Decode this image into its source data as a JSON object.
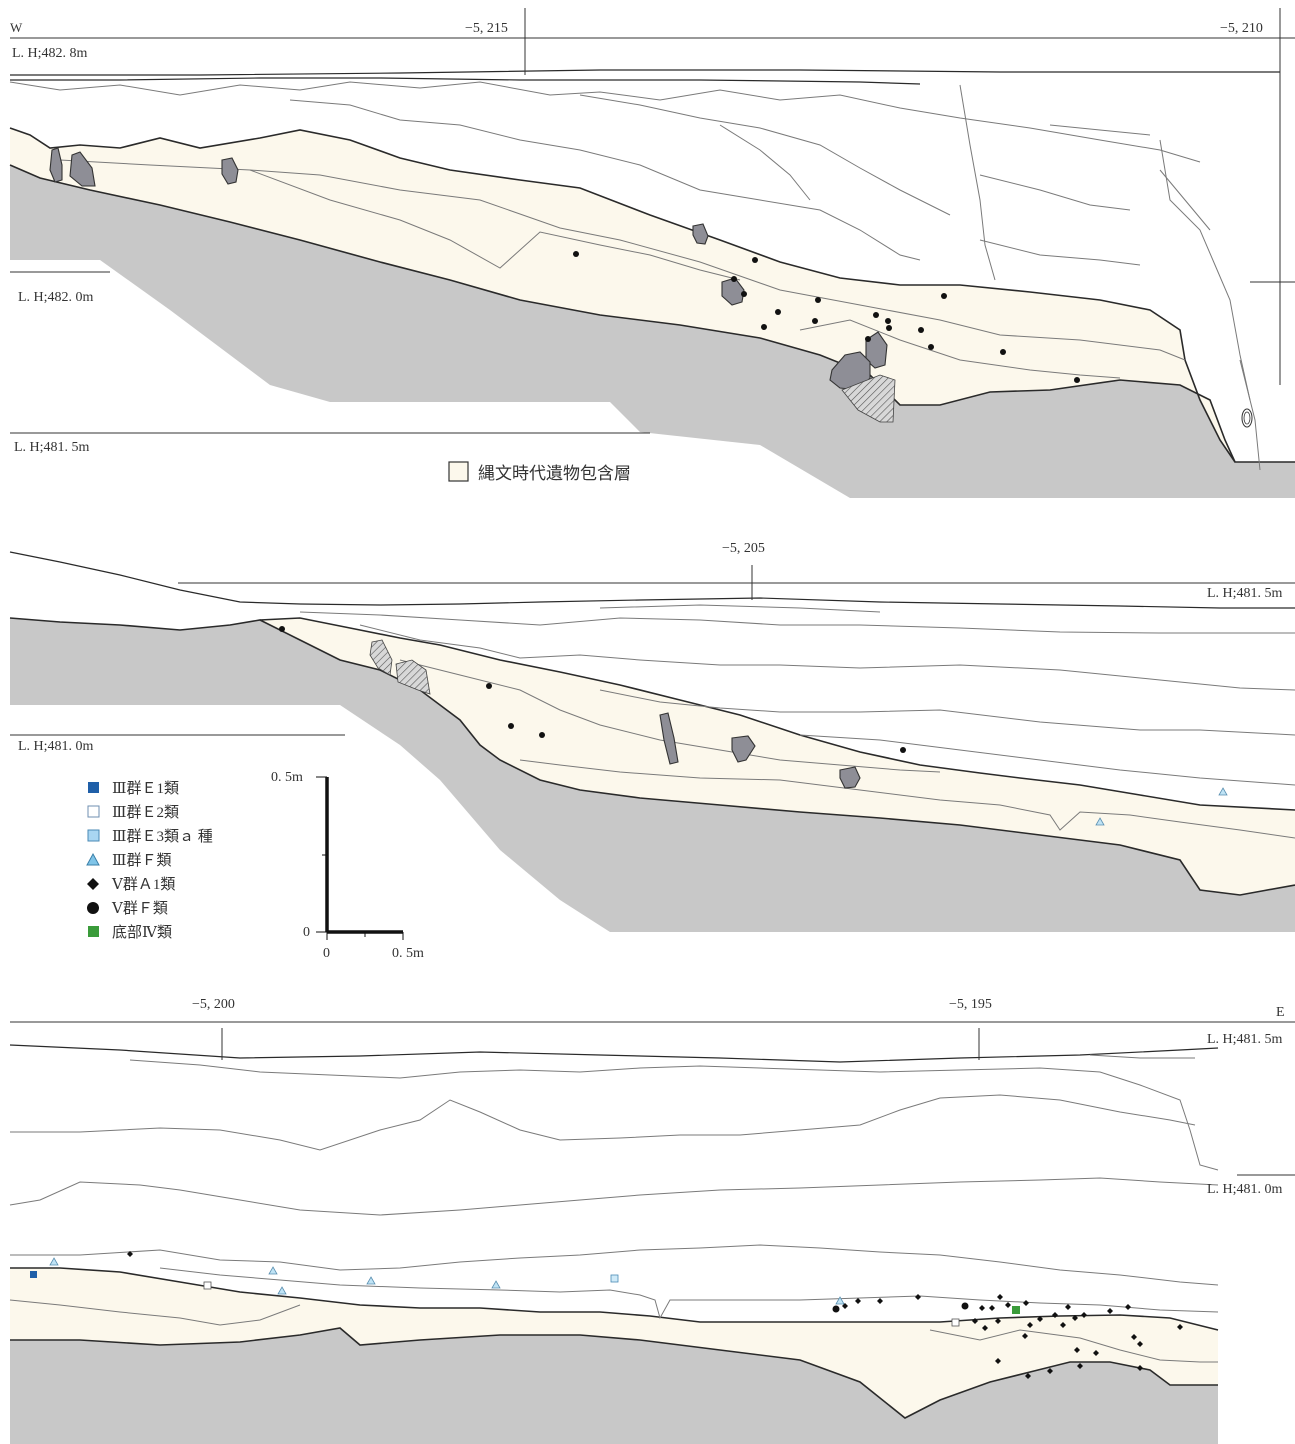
{
  "directions": {
    "west": "W",
    "east": "E"
  },
  "legend_layer": {
    "label": "縄文時代遺物包含層"
  },
  "panels": [
    {
      "id": "top",
      "grid_labels": [
        "−5, 215",
        "−5, 210"
      ],
      "level_labels": [
        "L. H;482. 8m",
        "L. H;482. 0m",
        "L. H;481. 5m"
      ]
    },
    {
      "id": "middle",
      "grid_labels": [
        "−5, 205"
      ],
      "level_labels": [
        "L. H;481. 5m",
        "L. H;481. 0m"
      ]
    },
    {
      "id": "bottom",
      "grid_labels": [
        "−5, 200",
        "−5, 195"
      ],
      "level_labels": [
        "L. H;481. 5m",
        "L. H;481. 0m"
      ]
    }
  ],
  "legend": [
    {
      "symbol": "square",
      "color": "#1f5fa8",
      "label": "Ⅲ群Ｅ1類"
    },
    {
      "symbol": "square-outline",
      "color": "#6f8fb0",
      "label": "Ⅲ群Ｅ2類"
    },
    {
      "symbol": "square-light",
      "color": "#a9d6f2",
      "label": "Ⅲ群Ｅ3類ａ 種"
    },
    {
      "symbol": "triangle",
      "color": "#7fc4e8",
      "label": "Ⅲ群Ｆ類"
    },
    {
      "symbol": "diamond",
      "color": "#111111",
      "label": "Ⅴ群Ａ1類"
    },
    {
      "symbol": "circle",
      "color": "#111111",
      "label": "Ⅴ群Ｆ類"
    },
    {
      "symbol": "square",
      "color": "#3a9b3a",
      "label": "底部Ⅳ類"
    }
  ],
  "scale_bar": {
    "top_label": "0. 5m",
    "origin_label": "0",
    "x_zero": "0",
    "x_label": "0. 5m"
  },
  "colors": {
    "deposit": "#fcf8ec",
    "bedrock": "#c8c8c8",
    "stone": "#8e8e96"
  }
}
